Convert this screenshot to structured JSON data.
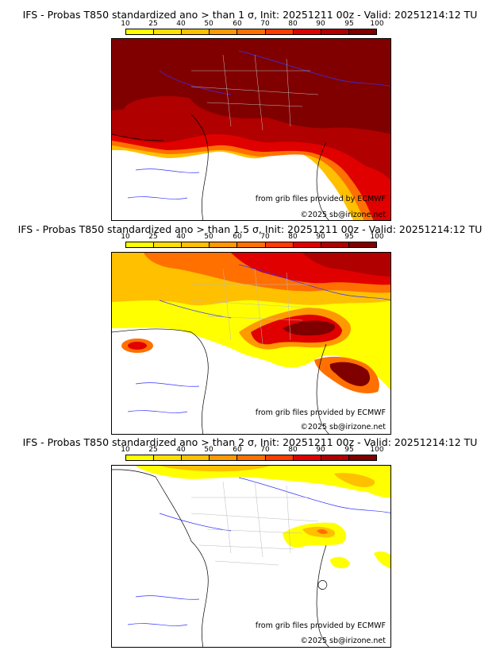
{
  "panels": [
    {
      "title": "IFS - Probas T850  standardized ano > than 1 σ, Init: 20251211 00z - Valid: 20251214:12 TU"
    },
    {
      "title": "IFS - Probas T850  standardized ano > than 1.5 σ, Init: 20251211 00z - Valid: 20251214:12 TU"
    },
    {
      "title": "IFS - Probas T850  standardized ano > than 2 σ, Init: 20251211 00z - Valid: 20251214:12 TU"
    }
  ],
  "colorbar": {
    "ticks": [
      "10",
      "25",
      "40",
      "50",
      "60",
      "70",
      "80",
      "90",
      "95",
      "100"
    ],
    "colors": [
      "#ffff00",
      "#ffe000",
      "#ffc000",
      "#ff9900",
      "#ff7000",
      "#ff3c00",
      "#e00000",
      "#b00000",
      "#800000"
    ]
  },
  "credits": {
    "source": "from grib files provided by ECMWF",
    "copyright": "©2025 sb@irizone.net"
  }
}
